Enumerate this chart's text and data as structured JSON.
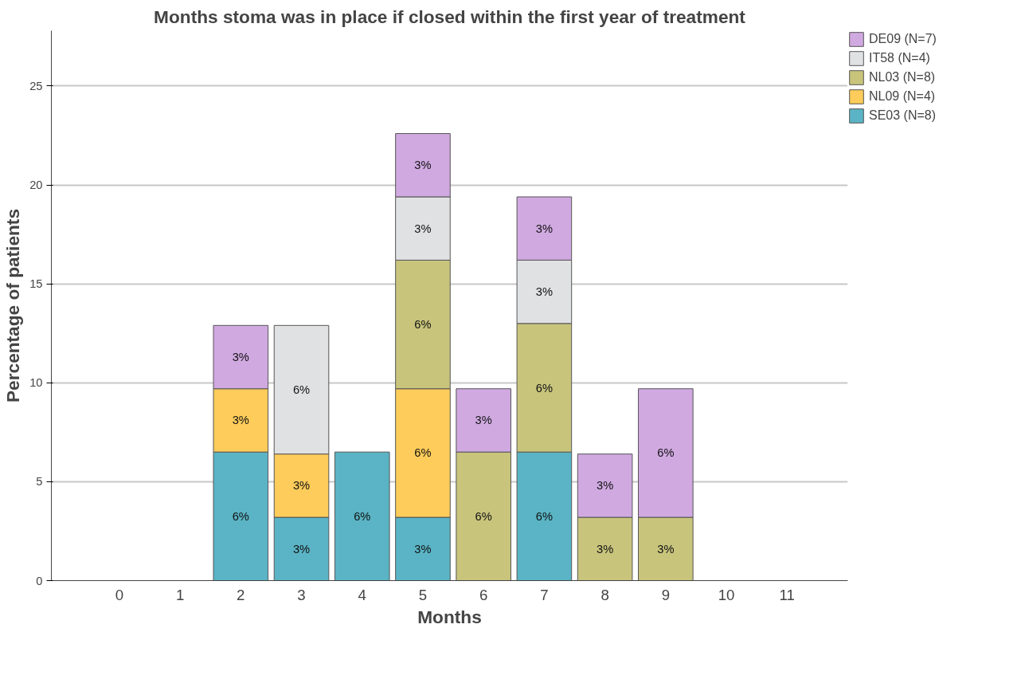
{
  "chart_data": {
    "type": "bar",
    "stacked": true,
    "title": "Months stoma was in place if closed within the first year of treatment",
    "xlabel": "Months",
    "ylabel": "Percentage of patients",
    "categories": [
      "0",
      "1",
      "2",
      "3",
      "4",
      "5",
      "6",
      "7",
      "8",
      "9",
      "10",
      "11"
    ],
    "ylim": [
      0,
      27.8
    ],
    "yticks": [
      0,
      5,
      10,
      15,
      20,
      25
    ],
    "grid": "y",
    "legend": "top right",
    "series": [
      {
        "name": "SE03 (N=8)",
        "color": "#5ab4c5",
        "values": [
          null,
          null,
          6.5,
          3.2,
          6.5,
          3.2,
          null,
          6.5,
          null,
          null,
          null,
          null
        ],
        "value_labels": [
          null,
          null,
          "6%",
          "3%",
          "6%",
          "3%",
          null,
          "6%",
          null,
          null,
          null,
          null
        ]
      },
      {
        "name": "NL09 (N=4)",
        "color": "#fdcc5a",
        "values": [
          null,
          null,
          3.2,
          3.2,
          null,
          6.5,
          null,
          null,
          null,
          null,
          null,
          null
        ],
        "value_labels": [
          null,
          null,
          "3%",
          "3%",
          null,
          "6%",
          null,
          null,
          null,
          null,
          null,
          null
        ]
      },
      {
        "name": "NL03 (N=8)",
        "color": "#c8c47c",
        "values": [
          null,
          null,
          null,
          null,
          null,
          6.5,
          6.5,
          6.5,
          3.2,
          3.2,
          null,
          null
        ],
        "value_labels": [
          null,
          null,
          null,
          null,
          null,
          "6%",
          "6%",
          "6%",
          "3%",
          "3%",
          null,
          null
        ]
      },
      {
        "name": "IT58 (N=4)",
        "color": "#e0e1e3",
        "values": [
          null,
          null,
          null,
          6.5,
          null,
          3.2,
          null,
          3.2,
          null,
          null,
          null,
          null
        ],
        "value_labels": [
          null,
          null,
          null,
          "6%",
          null,
          "3%",
          null,
          "3%",
          null,
          null,
          null,
          null
        ]
      },
      {
        "name": "DE09 (N=7)",
        "color": "#d0a9e1",
        "values": [
          null,
          null,
          3.2,
          null,
          null,
          3.2,
          3.2,
          3.2,
          3.2,
          6.5,
          null,
          null
        ],
        "value_labels": [
          null,
          null,
          "3%",
          null,
          null,
          "3%",
          "3%",
          "3%",
          "3%",
          "6%",
          null,
          null
        ]
      }
    ]
  }
}
